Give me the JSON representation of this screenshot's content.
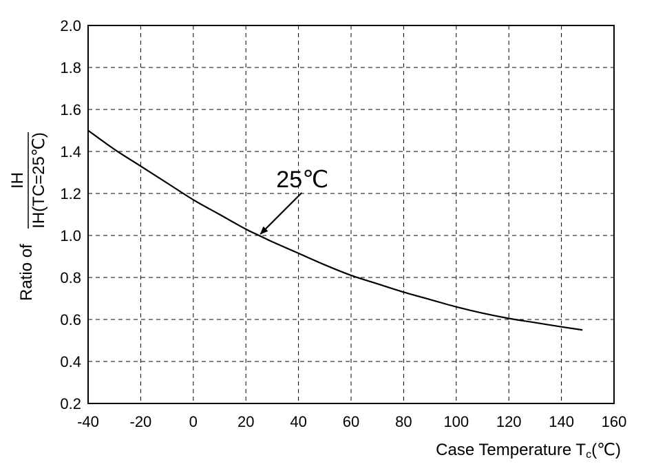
{
  "chart_data": {
    "type": "line",
    "title": "",
    "xlabel": "Case Temperature T",
    "xlabel_subscript": "c",
    "xlabel_unit": "(℃)",
    "ylabel_prefix": "Ratio of",
    "ylabel_numerator": "IH",
    "ylabel_denominator": "IH(TC=25℃)",
    "xlim": [
      -40,
      160
    ],
    "ylim": [
      0.2,
      2.0
    ],
    "x_ticks": [
      "-40",
      "-20",
      "0",
      "20",
      "40",
      "60",
      "80",
      "100",
      "120",
      "140",
      "160"
    ],
    "y_ticks": [
      "2.0",
      "1.8",
      "1.6",
      "1.4",
      "1.2",
      "1.0",
      "0.8",
      "0.6",
      "0.4",
      "0.2"
    ],
    "grid": true,
    "series": [
      {
        "x": [
          -40,
          -30,
          -20,
          -10,
          0,
          10,
          20,
          25,
          30,
          40,
          50,
          60,
          70,
          80,
          90,
          100,
          110,
          120,
          130,
          140,
          148
        ],
        "y": [
          1.5,
          1.41,
          1.33,
          1.25,
          1.17,
          1.1,
          1.03,
          1.0,
          0.97,
          0.915,
          0.86,
          0.81,
          0.77,
          0.73,
          0.695,
          0.66,
          0.63,
          0.605,
          0.585,
          0.565,
          0.55
        ]
      }
    ],
    "annotation": {
      "text": "25℃",
      "x": 25,
      "y": 1.0
    }
  }
}
